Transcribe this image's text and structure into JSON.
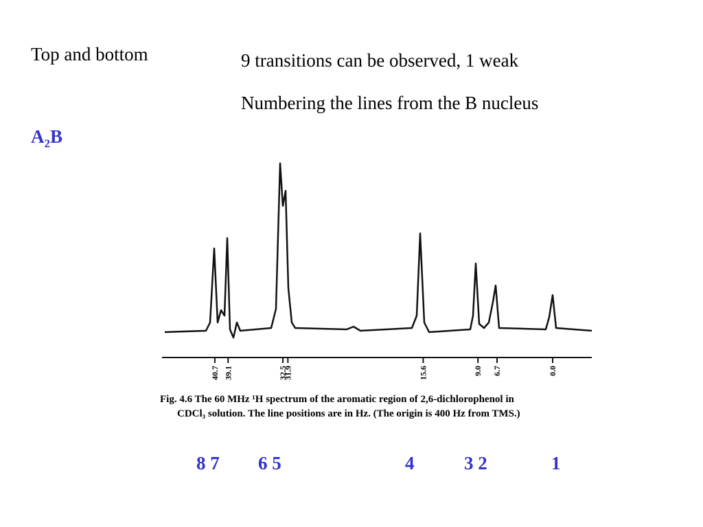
{
  "header": {
    "left": "Top and bottom",
    "line1": "9 transitions can be observed, 1 weak",
    "line2": "Numbering the lines from the B nucleus"
  },
  "system": {
    "main": "A",
    "subscript": "2",
    "tail": "B"
  },
  "figure": {
    "positions": [
      "40.7",
      "39.1",
      "32.5",
      "31.9",
      "15.6",
      "9.0",
      "6.7",
      "0.0"
    ],
    "caption": [
      "Fig. 4.6   The 60 MHz ¹H spectrum of the aromatic region of 2,6-dichlorophenol in",
      "CDCl₃ solution. The line positions are in Hz. (The origin is 400 Hz from TMS.)"
    ]
  },
  "numbering": [
    "8 7",
    "6 5",
    "4",
    "3 2",
    "1"
  ]
}
